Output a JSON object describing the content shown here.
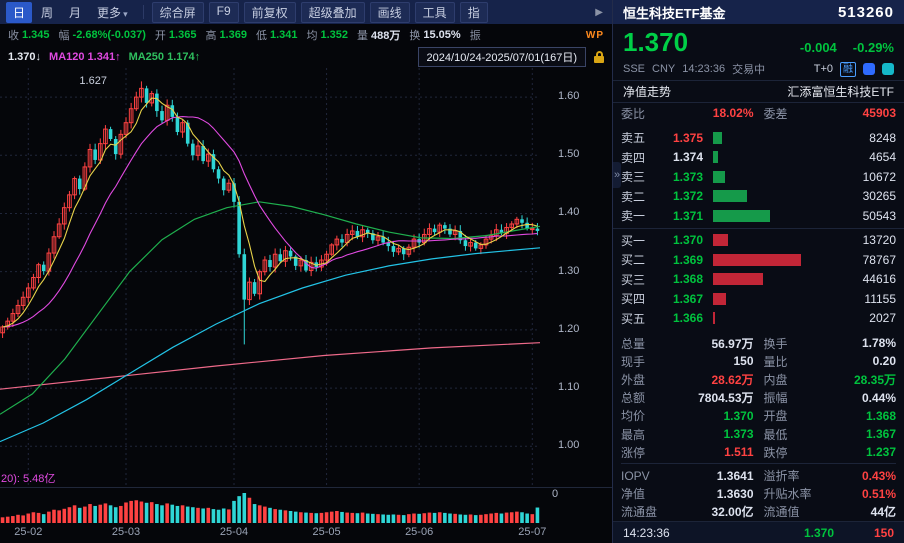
{
  "icons": {
    "dropdown_caret": "▾",
    "chevron_right": "▶",
    "panel_collapse": "»",
    "wp_badge": "WP"
  },
  "topbar": {
    "period_tabs": [
      {
        "label": "日",
        "active": true
      },
      {
        "label": "周",
        "active": false
      },
      {
        "label": "月",
        "active": false
      },
      {
        "label": "更多",
        "active": false,
        "caret": true
      }
    ],
    "tools": [
      "综合屏",
      "F9",
      "前复权",
      "超级叠加",
      "画线",
      "工具",
      "指"
    ]
  },
  "stats_row": {
    "items": [
      {
        "label": "收",
        "value": "1.345",
        "color": "down"
      },
      {
        "label": "幅",
        "value": "-2.68%(-0.037)",
        "color": "down"
      },
      {
        "label": "开",
        "value": "1.365",
        "color": "down"
      },
      {
        "label": "高",
        "value": "1.369",
        "color": "down"
      },
      {
        "label": "低",
        "value": "1.341",
        "color": "down"
      },
      {
        "label": "均",
        "value": "1.352",
        "color": "down"
      },
      {
        "label": "量",
        "value": "488万",
        "color": "n"
      },
      {
        "label": "换",
        "value": "15.05%",
        "color": "n"
      },
      {
        "label": "振",
        "value": "",
        "color": "n"
      }
    ],
    "wp_badge": "WP"
  },
  "ma_row": {
    "price": "1.370↓",
    "items": [
      {
        "text": "MA120 1.341↑",
        "color": "#e14ae1"
      },
      {
        "text": "MA250 1.174↑",
        "color": "#2fbf5f"
      }
    ],
    "date_range": "2024/10/24-2025/07/01(167日)"
  },
  "chart_data": {
    "type": "candlestick",
    "title": "恒生科技ETF基金 513260 日K",
    "date_range": "2024/10/24-2025/07/01(167日)",
    "y_ticks": [
      1.0,
      1.1,
      1.2,
      1.3,
      1.4,
      1.5,
      1.6
    ],
    "y_min": 0.93,
    "y_max": 1.65,
    "x_ticks": [
      {
        "label": "25-02",
        "index": 5
      },
      {
        "label": "25-03",
        "index": 24
      },
      {
        "label": "25-04",
        "index": 45
      },
      {
        "label": "25-05",
        "index": 63
      },
      {
        "label": "25-06",
        "index": 81
      },
      {
        "label": "25-07",
        "index": 103
      }
    ],
    "closes": [
      1.205,
      1.215,
      1.228,
      1.242,
      1.256,
      1.272,
      1.29,
      1.312,
      1.301,
      1.332,
      1.36,
      1.382,
      1.41,
      1.432,
      1.46,
      1.442,
      1.48,
      1.51,
      1.492,
      1.52,
      1.545,
      1.528,
      1.502,
      1.536,
      1.556,
      1.58,
      1.6,
      1.615,
      1.59,
      1.606,
      1.576,
      1.56,
      1.586,
      1.566,
      1.54,
      1.556,
      1.52,
      1.5,
      1.516,
      1.49,
      1.502,
      1.476,
      1.46,
      1.44,
      1.452,
      1.42,
      1.33,
      1.252,
      1.282,
      1.262,
      1.3,
      1.32,
      1.308,
      1.33,
      1.318,
      1.336,
      1.326,
      1.31,
      1.32,
      1.302,
      1.316,
      1.308,
      1.32,
      1.33,
      1.346,
      1.356,
      1.35,
      1.364,
      1.37,
      1.36,
      1.372,
      1.366,
      1.354,
      1.36,
      1.35,
      1.344,
      1.334,
      1.34,
      1.33,
      1.342,
      1.356,
      1.35,
      1.364,
      1.374,
      1.368,
      1.38,
      1.374,
      1.364,
      1.37,
      1.354,
      1.344,
      1.35,
      1.34,
      1.346,
      1.356,
      1.362,
      1.372,
      1.366,
      1.376,
      1.382,
      1.39,
      1.384,
      1.374,
      1.374,
      1.37
    ],
    "volumes": [
      180,
      200,
      220,
      260,
      240,
      300,
      340,
      320,
      280,
      360,
      420,
      400,
      450,
      500,
      560,
      480,
      520,
      600,
      540,
      580,
      620,
      560,
      500,
      540,
      650,
      700,
      720,
      680,
      640,
      660,
      600,
      560,
      620,
      580,
      540,
      560,
      520,
      500,
      480,
      460,
      480,
      440,
      420,
      460,
      430,
      700,
      850,
      950,
      800,
      600,
      560,
      520,
      480,
      440,
      420,
      400,
      380,
      360,
      340,
      330,
      320,
      310,
      320,
      340,
      360,
      380,
      350,
      330,
      320,
      310,
      330,
      300,
      290,
      280,
      270,
      260,
      270,
      260,
      250,
      280,
      300,
      290,
      310,
      330,
      320,
      340,
      320,
      300,
      290,
      270,
      260,
      270,
      250,
      260,
      280,
      300,
      320,
      300,
      330,
      340,
      360,
      340,
      300,
      280,
      490
    ],
    "peak": {
      "index": 27,
      "high": 1.627,
      "label": "1.627"
    },
    "crash_low": {
      "index": 47,
      "low": 1.175
    },
    "colors": {
      "up": "#ff4242",
      "down": "#2fd6d6"
    },
    "ma_lines": {
      "yellow": {
        "period": 5,
        "color": "#e8d34a"
      },
      "magenta": {
        "period": 15,
        "color": "#e14ae1"
      },
      "green": {
        "color": "#1faf4e",
        "points": [
          [
            0,
            1.055
          ],
          [
            0.06,
            1.09
          ],
          [
            0.12,
            1.15
          ],
          [
            0.18,
            1.225
          ],
          [
            0.24,
            1.3
          ],
          [
            0.3,
            1.355
          ],
          [
            0.36,
            1.39
          ],
          [
            0.42,
            1.41
          ],
          [
            0.48,
            1.42
          ],
          [
            0.54,
            1.412
          ],
          [
            0.6,
            1.398
          ],
          [
            0.66,
            1.382
          ],
          [
            0.72,
            1.368
          ],
          [
            0.78,
            1.358
          ],
          [
            0.84,
            1.357
          ],
          [
            0.9,
            1.362
          ],
          [
            0.95,
            1.37
          ],
          [
            1,
            1.378
          ]
        ]
      },
      "cyan": {
        "color": "#23c3e6",
        "points": [
          [
            0,
            1.008
          ],
          [
            0.08,
            1.04
          ],
          [
            0.16,
            1.08
          ],
          [
            0.24,
            1.125
          ],
          [
            0.32,
            1.17
          ],
          [
            0.4,
            1.21
          ],
          [
            0.48,
            1.245
          ],
          [
            0.56,
            1.272
          ],
          [
            0.64,
            1.294
          ],
          [
            0.72,
            1.31
          ],
          [
            0.8,
            1.322
          ],
          [
            0.88,
            1.331
          ],
          [
            1,
            1.341
          ]
        ]
      },
      "pink": {
        "color": "#ef6a8a",
        "points": [
          [
            0,
            1.098
          ],
          [
            0.2,
            1.118
          ],
          [
            0.4,
            1.138
          ],
          [
            0.6,
            1.156
          ],
          [
            0.8,
            1.169
          ],
          [
            1,
            1.178
          ]
        ]
      }
    },
    "volume_ma_label": "20): 5.48亿",
    "baseline_label": "0"
  },
  "panel": {
    "header": {
      "name": "恒生科技ETF基金",
      "code": "513260"
    },
    "price": {
      "last": "1.370",
      "change": "-0.004",
      "pct": "-0.29%",
      "direction": "down"
    },
    "market": {
      "exchange": "SSE",
      "currency": "CNY",
      "time": "14:23:36",
      "status": "交易中",
      "t0": "T+0",
      "margin_badge": "融"
    },
    "nav_tab": {
      "left": "净值走势",
      "right": "汇添富恒生科技ETF"
    },
    "ratio": {
      "label1": "委比",
      "value1": "18.02%",
      "label2": "委差",
      "value2": "45903"
    },
    "order_book": {
      "sells": [
        {
          "label": "卖五",
          "price": "1.375",
          "volume": "8248",
          "price_color": "up",
          "bar": 8248
        },
        {
          "label": "卖四",
          "price": "1.374",
          "volume": "4654",
          "price_color": "flat",
          "bar": 4654
        },
        {
          "label": "卖三",
          "price": "1.373",
          "volume": "10672",
          "price_color": "down",
          "bar": 10672
        },
        {
          "label": "卖二",
          "price": "1.372",
          "volume": "30265",
          "price_color": "down",
          "bar": 30265
        },
        {
          "label": "卖一",
          "price": "1.371",
          "volume": "50543",
          "price_color": "down",
          "bar": 50543
        }
      ],
      "buys": [
        {
          "label": "买一",
          "price": "1.370",
          "volume": "13720",
          "price_color": "down",
          "bar": 13720
        },
        {
          "label": "买二",
          "price": "1.369",
          "volume": "78767",
          "price_color": "down",
          "bar": 78767
        },
        {
          "label": "买三",
          "price": "1.368",
          "volume": "44616",
          "price_color": "down",
          "bar": 44616
        },
        {
          "label": "买四",
          "price": "1.367",
          "volume": "11155",
          "price_color": "down",
          "bar": 11155
        },
        {
          "label": "买五",
          "price": "1.366",
          "volume": "2027",
          "price_color": "down",
          "bar": 2027
        }
      ]
    },
    "stats": [
      {
        "l1": "总量",
        "v1": "56.97万",
        "c1": "n",
        "l2": "换手",
        "v2": "1.78%",
        "c2": "n"
      },
      {
        "l1": "现手",
        "v1": "150",
        "c1": "n",
        "l2": "量比",
        "v2": "0.20",
        "c2": "n"
      },
      {
        "l1": "外盘",
        "v1": "28.62万",
        "c1": "up",
        "l2": "内盘",
        "v2": "28.35万",
        "c2": "down"
      },
      {
        "l1": "总额",
        "v1": "7804.53万",
        "c1": "n",
        "l2": "振幅",
        "v2": "0.44%",
        "c2": "n"
      },
      {
        "l1": "均价",
        "v1": "1.370",
        "c1": "down",
        "l2": "开盘",
        "v2": "1.368",
        "c2": "down"
      },
      {
        "l1": "最高",
        "v1": "1.373",
        "c1": "down",
        "l2": "最低",
        "v2": "1.367",
        "c2": "down"
      },
      {
        "l1": "涨停",
        "v1": "1.511",
        "c1": "up",
        "l2": "跌停",
        "v2": "1.237",
        "c2": "down"
      },
      {
        "l1": "IOPV",
        "v1": "1.3641",
        "c1": "n",
        "l2": "溢折率",
        "v2": "0.43%",
        "c2": "up",
        "divider_above": true
      },
      {
        "l1": "净值",
        "v1": "1.3630",
        "c1": "n",
        "l2": "升贴水率",
        "v2": "0.51%",
        "c2": "up"
      },
      {
        "l1": "流通盘",
        "v1": "32.00亿",
        "c1": "n",
        "l2": "流通值",
        "v2": "44亿",
        "c2": "n"
      }
    ],
    "footer": {
      "time": "14:23:36",
      "price": "1.370",
      "vol": "150"
    }
  }
}
